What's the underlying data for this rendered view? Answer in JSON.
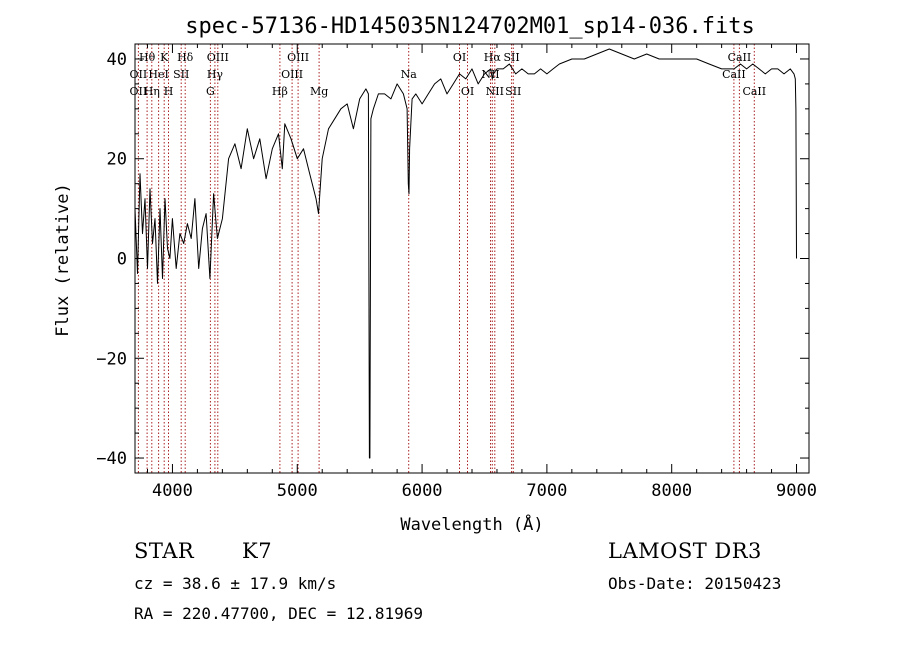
{
  "chart_data": {
    "type": "line",
    "title": "spec-57136-HD145035N124702M01_sp14-036.fits",
    "xlabel": "Wavelength (Å)",
    "ylabel": "Flux (relative)",
    "xlim": [
      3700,
      9100
    ],
    "ylim": [
      -43,
      43
    ],
    "xticks": [
      4000,
      5000,
      6000,
      7000,
      8000,
      9000
    ],
    "yticks": [
      -40,
      -20,
      0,
      20,
      40
    ],
    "grid": false,
    "line_color": "#000000",
    "marker_color": "#aa2222",
    "spectrum": {
      "x": [
        3700,
        3720,
        3740,
        3760,
        3780,
        3800,
        3820,
        3840,
        3860,
        3880,
        3900,
        3920,
        3940,
        3960,
        3980,
        4000,
        4030,
        4060,
        4090,
        4120,
        4150,
        4180,
        4210,
        4240,
        4270,
        4300,
        4330,
        4360,
        4400,
        4450,
        4500,
        4550,
        4600,
        4650,
        4700,
        4750,
        4800,
        4850,
        4880,
        4900,
        4950,
        5000,
        5050,
        5100,
        5150,
        5170,
        5200,
        5250,
        5300,
        5350,
        5400,
        5450,
        5500,
        5550,
        5570,
        5578,
        5582,
        5590,
        5610,
        5650,
        5700,
        5750,
        5800,
        5850,
        5880,
        5890,
        5895,
        5900,
        5920,
        5950,
        6000,
        6050,
        6100,
        6150,
        6200,
        6250,
        6300,
        6350,
        6400,
        6450,
        6500,
        6550,
        6563,
        6570,
        6600,
        6650,
        6700,
        6750,
        6800,
        6850,
        6900,
        6950,
        7000,
        7050,
        7100,
        7200,
        7300,
        7400,
        7500,
        7600,
        7700,
        7800,
        7900,
        8000,
        8100,
        8200,
        8300,
        8400,
        8500,
        8550,
        8600,
        8650,
        8700,
        8750,
        8800,
        8850,
        8900,
        8950,
        8980,
        8990,
        8995,
        9000
      ],
      "y": [
        10,
        -3,
        17,
        5,
        12,
        -2,
        14,
        3,
        8,
        -5,
        10,
        -4,
        12,
        2,
        0,
        8,
        -2,
        5,
        3,
        7,
        4,
        12,
        -2,
        6,
        9,
        -4,
        13,
        4,
        8,
        20,
        23,
        18,
        26,
        20,
        24,
        16,
        22,
        25,
        18,
        27,
        24,
        20,
        22,
        17,
        12,
        9,
        20,
        26,
        28,
        30,
        31,
        26,
        32,
        34,
        33,
        -40,
        -40,
        28,
        30,
        33,
        33,
        32,
        35,
        33,
        30,
        15,
        13,
        22,
        32,
        33,
        31,
        33,
        35,
        36,
        33,
        35,
        37,
        36,
        38,
        35,
        37,
        38,
        36,
        37,
        38,
        38,
        39,
        37,
        38,
        37,
        37,
        38,
        37,
        38,
        39,
        40,
        40,
        41,
        42,
        41,
        40,
        41,
        40,
        40,
        40,
        40,
        39,
        38,
        38,
        39,
        38,
        39,
        38,
        37,
        38,
        38,
        37,
        38,
        37,
        36,
        30,
        0
      ]
    },
    "lines": [
      {
        "name": "Hθ",
        "wl": 3797,
        "row": 1
      },
      {
        "name": "K",
        "wl": 3934,
        "row": 1
      },
      {
        "name": "Hδ",
        "wl": 4102,
        "row": 1
      },
      {
        "name": "OIII",
        "wl": 4363,
        "row": 1
      },
      {
        "name": "OIII",
        "wl": 5007,
        "row": 1
      },
      {
        "name": "OI",
        "wl": 6300,
        "row": 1
      },
      {
        "name": "Hα",
        "wl": 6563,
        "row": 1
      },
      {
        "name": "SII",
        "wl": 6717,
        "row": 1
      },
      {
        "name": "CaII",
        "wl": 8542,
        "row": 1
      },
      {
        "name": "OII",
        "wl": 3727,
        "row": 2
      },
      {
        "name": "HeI",
        "wl": 3889,
        "row": 2
      },
      {
        "name": "SII",
        "wl": 4070,
        "row": 2
      },
      {
        "name": "Hγ",
        "wl": 4340,
        "row": 2
      },
      {
        "name": "OIII",
        "wl": 4959,
        "row": 2
      },
      {
        "name": "Na",
        "wl": 5893,
        "row": 2
      },
      {
        "name": "NII",
        "wl": 6548,
        "row": 2
      },
      {
        "name": "CaII",
        "wl": 8498,
        "row": 2
      },
      {
        "name": "OII",
        "wl": 3727,
        "row": 3
      },
      {
        "name": "Hη",
        "wl": 3835,
        "row": 3
      },
      {
        "name": "H",
        "wl": 3968,
        "row": 3
      },
      {
        "name": "G",
        "wl": 4304,
        "row": 3
      },
      {
        "name": "Hβ",
        "wl": 4861,
        "row": 3
      },
      {
        "name": "Mg",
        "wl": 5175,
        "row": 3
      },
      {
        "name": "OI",
        "wl": 6364,
        "row": 3
      },
      {
        "name": "NII",
        "wl": 6583,
        "row": 3
      },
      {
        "name": "SII",
        "wl": 6731,
        "row": 3
      },
      {
        "name": "CaII",
        "wl": 8662,
        "row": 3
      }
    ]
  },
  "info": {
    "class": "STAR",
    "subclass": "K7",
    "cz": "cz = 38.6 ± 17.9 km/s",
    "radec": "RA = 220.47700, DEC =  12.81969",
    "survey": "LAMOST DR3",
    "obs_date": "Obs-Date: 20150423"
  }
}
